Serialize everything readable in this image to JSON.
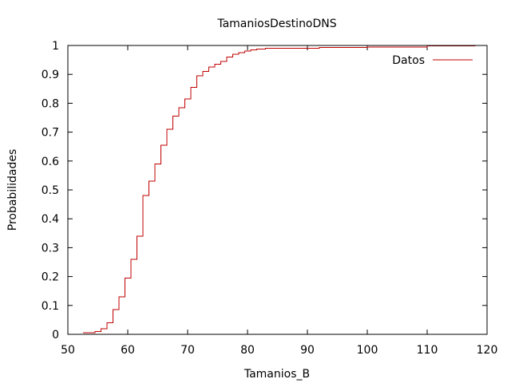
{
  "chart_data": {
    "type": "line",
    "title": "TamaniosDestinoDNS",
    "xlabel": "Tamanios_B",
    "ylabel": "Probabilidades",
    "xlim": [
      50,
      120
    ],
    "ylim": [
      0,
      1
    ],
    "xticks": [
      "50",
      "60",
      "70",
      "80",
      "90",
      "100",
      "110",
      "120"
    ],
    "yticks": [
      "0",
      "0.1",
      "0.2",
      "0.3",
      "0.4",
      "0.5",
      "0.6",
      "0.7",
      "0.8",
      "0.9",
      "1"
    ],
    "legend": "top-right",
    "grid": false,
    "series": [
      {
        "name": "Datos",
        "color": "#c00000",
        "step": true,
        "x": [
          52.5,
          54.5,
          55.5,
          56.5,
          57.5,
          58.5,
          59.5,
          60.5,
          61.5,
          62.5,
          63.5,
          64.5,
          65.5,
          66.5,
          67.5,
          68.5,
          69.5,
          70.5,
          71.5,
          72.5,
          73.5,
          74.5,
          75.5,
          76.5,
          77.5,
          78.5,
          79.5,
          80.5,
          81.5,
          83.0,
          92.0,
          100.0,
          110.0,
          118.0
        ],
        "y": [
          0.005,
          0.01,
          0.02,
          0.04,
          0.085,
          0.13,
          0.195,
          0.26,
          0.34,
          0.48,
          0.53,
          0.59,
          0.655,
          0.71,
          0.755,
          0.785,
          0.815,
          0.855,
          0.895,
          0.91,
          0.925,
          0.935,
          0.945,
          0.96,
          0.97,
          0.975,
          0.98,
          0.985,
          0.988,
          0.99,
          0.993,
          0.995,
          0.998,
          1.0
        ]
      }
    ]
  }
}
